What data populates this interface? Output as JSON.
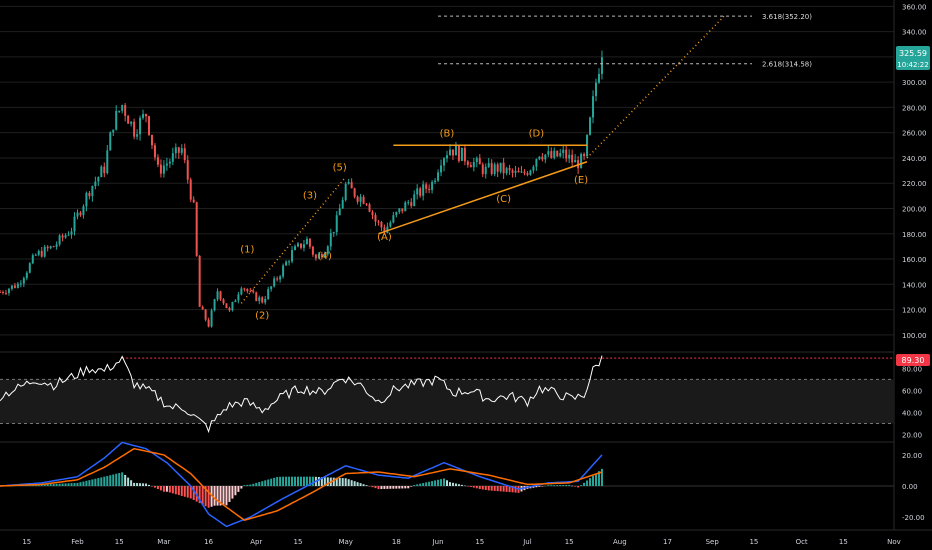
{
  "colors": {
    "background": "#000000",
    "up": "#26a69a",
    "down": "#ef5350",
    "annotation": "#f59b1a",
    "rsi_line": "#ffffff",
    "macd_line": "#2962ff",
    "signal_line": "#ff6d00",
    "badge_bg": "#26a69a",
    "rsi_badge_bg": "#f23645",
    "axis_text": "#d1d4dc",
    "grid": "#1f1f1f"
  },
  "price_badge": {
    "price": "325.59",
    "countdown": "10:42:22"
  },
  "fib_levels": [
    {
      "label": "3.618(352.20)",
      "value": 352.2
    },
    {
      "label": "2.618(314.58)",
      "value": 314.58
    }
  ],
  "wave_labels": [
    {
      "text": "(1)",
      "x": "2020-03-29",
      "y": 165
    },
    {
      "text": "(2)",
      "x": "2020-04-03",
      "y": 113
    },
    {
      "text": "(3)",
      "x": "2020-04-19",
      "y": 208
    },
    {
      "text": "(4)",
      "x": "2020-04-24",
      "y": 160
    },
    {
      "text": "(5)",
      "x": "2020-04-29",
      "y": 230
    },
    {
      "text": "(A)",
      "x": "2020-05-14",
      "y": 175
    },
    {
      "text": "(B)",
      "x": "2020-06-04",
      "y": 257
    },
    {
      "text": "(C)",
      "x": "2020-06-23",
      "y": 205
    },
    {
      "text": "(D)",
      "x": "2020-07-04",
      "y": 257
    },
    {
      "text": "(E)",
      "x": "2020-07-19",
      "y": 220
    }
  ],
  "x_ticks": [
    "15",
    "Feb",
    "15",
    "Mar",
    "16",
    "Apr",
    "15",
    "May",
    "18",
    "Jun",
    "15",
    "Jul",
    "15",
    "Aug",
    "17",
    "Sep",
    "15",
    "Oct",
    "15",
    "Nov"
  ],
  "chart_data": [
    {
      "type": "candlestick",
      "title": "",
      "x_ticks": [
        "2020-01-15",
        "2020-02-01",
        "2020-02-15",
        "2020-03-01",
        "2020-03-16",
        "2020-04-01",
        "2020-04-15",
        "2020-05-01",
        "2020-05-18",
        "2020-06-01",
        "2020-06-15",
        "2020-07-01",
        "2020-07-15",
        "2020-08-01",
        "2020-08-17",
        "2020-09-01",
        "2020-09-15",
        "2020-10-01",
        "2020-10-15",
        "2020-11-01"
      ],
      "x_range": [
        "2020-01-06",
        "2020-11-01"
      ],
      "y_range": [
        88,
        365
      ],
      "y_ticks": [
        100,
        120,
        140,
        160,
        180,
        200,
        220,
        240,
        260,
        280,
        300,
        320,
        340,
        360
      ],
      "last_price": 325.59,
      "close_series": [
        {
          "x": "2020-01-06",
          "y": 134
        },
        {
          "x": "2020-01-12",
          "y": 140
        },
        {
          "x": "2020-01-18",
          "y": 163
        },
        {
          "x": "2020-01-24",
          "y": 170
        },
        {
          "x": "2020-01-30",
          "y": 184
        },
        {
          "x": "2020-02-05",
          "y": 215
        },
        {
          "x": "2020-02-10",
          "y": 232
        },
        {
          "x": "2020-02-13",
          "y": 268
        },
        {
          "x": "2020-02-16",
          "y": 282
        },
        {
          "x": "2020-02-20",
          "y": 262
        },
        {
          "x": "2020-02-24",
          "y": 275
        },
        {
          "x": "2020-02-28",
          "y": 230
        },
        {
          "x": "2020-03-03",
          "y": 238
        },
        {
          "x": "2020-03-07",
          "y": 247
        },
        {
          "x": "2020-03-11",
          "y": 200
        },
        {
          "x": "2020-03-13",
          "y": 122
        },
        {
          "x": "2020-03-16",
          "y": 108
        },
        {
          "x": "2020-03-19",
          "y": 135
        },
        {
          "x": "2020-03-23",
          "y": 118
        },
        {
          "x": "2020-03-27",
          "y": 140
        },
        {
          "x": "2020-03-30",
          "y": 132
        },
        {
          "x": "2020-04-03",
          "y": 127
        },
        {
          "x": "2020-04-08",
          "y": 145
        },
        {
          "x": "2020-04-13",
          "y": 165
        },
        {
          "x": "2020-04-18",
          "y": 175
        },
        {
          "x": "2020-04-21",
          "y": 160
        },
        {
          "x": "2020-04-24",
          "y": 168
        },
        {
          "x": "2020-04-28",
          "y": 190
        },
        {
          "x": "2020-05-01",
          "y": 218
        },
        {
          "x": "2020-05-05",
          "y": 210
        },
        {
          "x": "2020-05-08",
          "y": 207
        },
        {
          "x": "2020-05-11",
          "y": 190
        },
        {
          "x": "2020-05-14",
          "y": 183
        },
        {
          "x": "2020-05-18",
          "y": 195
        },
        {
          "x": "2020-05-22",
          "y": 205
        },
        {
          "x": "2020-05-26",
          "y": 213
        },
        {
          "x": "2020-05-30",
          "y": 220
        },
        {
          "x": "2020-06-02",
          "y": 240
        },
        {
          "x": "2020-06-05",
          "y": 248
        },
        {
          "x": "2020-06-09",
          "y": 242
        },
        {
          "x": "2020-06-13",
          "y": 236
        },
        {
          "x": "2020-06-17",
          "y": 230
        },
        {
          "x": "2020-06-21",
          "y": 232
        },
        {
          "x": "2020-06-25",
          "y": 228
        },
        {
          "x": "2020-06-29",
          "y": 226
        },
        {
          "x": "2020-07-02",
          "y": 233
        },
        {
          "x": "2020-07-05",
          "y": 245
        },
        {
          "x": "2020-07-09",
          "y": 240
        },
        {
          "x": "2020-07-13",
          "y": 243
        },
        {
          "x": "2020-07-17",
          "y": 236
        },
        {
          "x": "2020-07-20",
          "y": 238
        },
        {
          "x": "2020-07-22",
          "y": 268
        },
        {
          "x": "2020-07-24",
          "y": 300
        },
        {
          "x": "2020-07-26",
          "y": 325.59
        }
      ],
      "overlays": [
        {
          "name": "upper-trendline",
          "points": [
            {
              "x": "2020-05-17",
              "y": 250
            },
            {
              "x": "2020-07-21",
              "y": 250
            }
          ]
        },
        {
          "name": "lower-trendline",
          "points": [
            {
              "x": "2020-05-12",
              "y": 180
            },
            {
              "x": "2020-07-21",
              "y": 237
            }
          ]
        },
        {
          "name": "impulse-projection",
          "points": [
            {
              "x": "2020-03-27",
              "y": 125
            },
            {
              "x": "2020-05-01",
              "y": 225
            }
          ]
        },
        {
          "name": "breakout-projection",
          "points": [
            {
              "x": "2020-07-21",
              "y": 240
            },
            {
              "x": "2020-09-05",
              "y": 352.2
            }
          ]
        }
      ]
    },
    {
      "type": "line",
      "title": "",
      "y_range": [
        15,
        93
      ],
      "y_ticks": [
        20,
        40,
        60,
        80
      ],
      "bands": [
        30,
        70
      ],
      "last_value": 89.3,
      "values": [
        {
          "x": "2020-01-06",
          "y": 55
        },
        {
          "x": "2020-01-12",
          "y": 62
        },
        {
          "x": "2020-01-18",
          "y": 70
        },
        {
          "x": "2020-01-24",
          "y": 65
        },
        {
          "x": "2020-01-30",
          "y": 72
        },
        {
          "x": "2020-02-05",
          "y": 80
        },
        {
          "x": "2020-02-10",
          "y": 78
        },
        {
          "x": "2020-02-16",
          "y": 88
        },
        {
          "x": "2020-02-20",
          "y": 66
        },
        {
          "x": "2020-02-26",
          "y": 58
        },
        {
          "x": "2020-03-03",
          "y": 45
        },
        {
          "x": "2020-03-08",
          "y": 44
        },
        {
          "x": "2020-03-13",
          "y": 32
        },
        {
          "x": "2020-03-16",
          "y": 26
        },
        {
          "x": "2020-03-22",
          "y": 45
        },
        {
          "x": "2020-03-28",
          "y": 50
        },
        {
          "x": "2020-04-03",
          "y": 42
        },
        {
          "x": "2020-04-10",
          "y": 55
        },
        {
          "x": "2020-04-16",
          "y": 62
        },
        {
          "x": "2020-04-23",
          "y": 58
        },
        {
          "x": "2020-04-30",
          "y": 72
        },
        {
          "x": "2020-05-06",
          "y": 65
        },
        {
          "x": "2020-05-12",
          "y": 50
        },
        {
          "x": "2020-05-18",
          "y": 62
        },
        {
          "x": "2020-05-25",
          "y": 66
        },
        {
          "x": "2020-06-01",
          "y": 70
        },
        {
          "x": "2020-06-06",
          "y": 58
        },
        {
          "x": "2020-06-12",
          "y": 60
        },
        {
          "x": "2020-06-18",
          "y": 52
        },
        {
          "x": "2020-06-25",
          "y": 55
        },
        {
          "x": "2020-07-01",
          "y": 50
        },
        {
          "x": "2020-07-05",
          "y": 62
        },
        {
          "x": "2020-07-10",
          "y": 58
        },
        {
          "x": "2020-07-16",
          "y": 52
        },
        {
          "x": "2020-07-20",
          "y": 56
        },
        {
          "x": "2020-07-23",
          "y": 78
        },
        {
          "x": "2020-07-26",
          "y": 89.3
        }
      ]
    },
    {
      "type": "line",
      "title": "",
      "y_range": [
        -27,
        27
      ],
      "y_ticks": [
        20,
        0,
        -20
      ],
      "series_values": {
        "macd": [
          {
            "x": "2020-01-06",
            "y": 0
          },
          {
            "x": "2020-01-20",
            "y": 2
          },
          {
            "x": "2020-02-01",
            "y": 6
          },
          {
            "x": "2020-02-10",
            "y": 18
          },
          {
            "x": "2020-02-16",
            "y": 28
          },
          {
            "x": "2020-02-24",
            "y": 24
          },
          {
            "x": "2020-03-02",
            "y": 15
          },
          {
            "x": "2020-03-10",
            "y": 0
          },
          {
            "x": "2020-03-16",
            "y": -18
          },
          {
            "x": "2020-03-22",
            "y": -26
          },
          {
            "x": "2020-03-30",
            "y": -20
          },
          {
            "x": "2020-04-10",
            "y": -8
          },
          {
            "x": "2020-04-20",
            "y": 2
          },
          {
            "x": "2020-05-01",
            "y": 13
          },
          {
            "x": "2020-05-12",
            "y": 7
          },
          {
            "x": "2020-05-22",
            "y": 5
          },
          {
            "x": "2020-06-03",
            "y": 15
          },
          {
            "x": "2020-06-15",
            "y": 6
          },
          {
            "x": "2020-06-28",
            "y": -2
          },
          {
            "x": "2020-07-08",
            "y": 2
          },
          {
            "x": "2020-07-18",
            "y": 3
          },
          {
            "x": "2020-07-26",
            "y": 20
          }
        ],
        "signal": [
          {
            "x": "2020-01-06",
            "y": 0
          },
          {
            "x": "2020-01-20",
            "y": 1
          },
          {
            "x": "2020-02-01",
            "y": 4
          },
          {
            "x": "2020-02-10",
            "y": 12
          },
          {
            "x": "2020-02-20",
            "y": 24
          },
          {
            "x": "2020-03-01",
            "y": 20
          },
          {
            "x": "2020-03-10",
            "y": 8
          },
          {
            "x": "2020-03-18",
            "y": -8
          },
          {
            "x": "2020-03-28",
            "y": -22
          },
          {
            "x": "2020-04-08",
            "y": -16
          },
          {
            "x": "2020-04-20",
            "y": -4
          },
          {
            "x": "2020-05-01",
            "y": 8
          },
          {
            "x": "2020-05-12",
            "y": 9
          },
          {
            "x": "2020-05-24",
            "y": 6
          },
          {
            "x": "2020-06-05",
            "y": 11
          },
          {
            "x": "2020-06-18",
            "y": 7
          },
          {
            "x": "2020-07-01",
            "y": 1
          },
          {
            "x": "2020-07-15",
            "y": 2
          },
          {
            "x": "2020-07-26",
            "y": 9
          }
        ]
      }
    }
  ]
}
